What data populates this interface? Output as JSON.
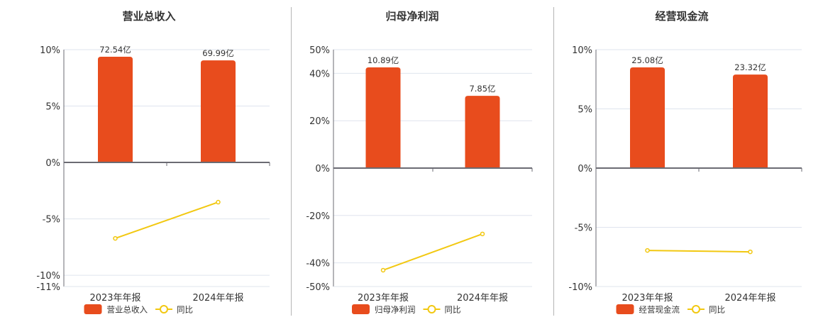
{
  "colors": {
    "bar": "#e84c1d",
    "line": "#f2c811",
    "grid": "#dfe4ee",
    "axis": "#6b6b73",
    "separator": "#b5b5b5"
  },
  "chart_data": [
    {
      "type": "bar+line",
      "title": "营业总收入",
      "categories": [
        "2023年年报",
        "2024年年报"
      ],
      "series": [
        {
          "name": "营业总收入",
          "type": "bar",
          "values": [
            9.37,
            9.05
          ],
          "labels": [
            "72.54亿",
            "69.99亿"
          ]
        },
        {
          "name": "同比",
          "type": "line",
          "values": [
            -6.73,
            -3.52
          ]
        }
      ],
      "yticks": [
        10,
        5,
        0,
        -5,
        -10,
        -11
      ],
      "ytick_labels": [
        "10%",
        "5%",
        "0%",
        "-5%",
        "-10%",
        "-11%"
      ],
      "ylim": [
        -11,
        10
      ],
      "legend_position": "bottom",
      "grid": true
    },
    {
      "type": "bar+line",
      "title": "归母净利润",
      "categories": [
        "2023年年报",
        "2024年年报"
      ],
      "series": [
        {
          "name": "归母净利润",
          "type": "bar",
          "values": [
            42.5,
            30.5
          ],
          "labels": [
            "10.89亿",
            "7.85亿"
          ]
        },
        {
          "name": "同比",
          "type": "line",
          "values": [
            -43.1,
            -27.8
          ]
        }
      ],
      "yticks": [
        50,
        40,
        20,
        0,
        -20,
        -40,
        -50
      ],
      "ytick_labels": [
        "50%",
        "40%",
        "20%",
        "0%",
        "-20%",
        "-40%",
        "-50%"
      ],
      "ylim": [
        -50,
        50
      ],
      "legend_position": "bottom",
      "grid": true
    },
    {
      "type": "bar+line",
      "title": "经营现金流",
      "categories": [
        "2023年年报",
        "2024年年报"
      ],
      "series": [
        {
          "name": "经营现金流",
          "type": "bar",
          "values": [
            8.5,
            7.9
          ],
          "labels": [
            "25.08亿",
            "23.32亿"
          ]
        },
        {
          "name": "同比",
          "type": "line",
          "values": [
            -6.95,
            -7.07
          ]
        }
      ],
      "yticks": [
        10,
        5,
        0,
        -5,
        -10
      ],
      "ytick_labels": [
        "10%",
        "5%",
        "0%",
        "-5%",
        "-10%"
      ],
      "ylim": [
        -10,
        10
      ],
      "legend_position": "bottom",
      "grid": true
    }
  ]
}
